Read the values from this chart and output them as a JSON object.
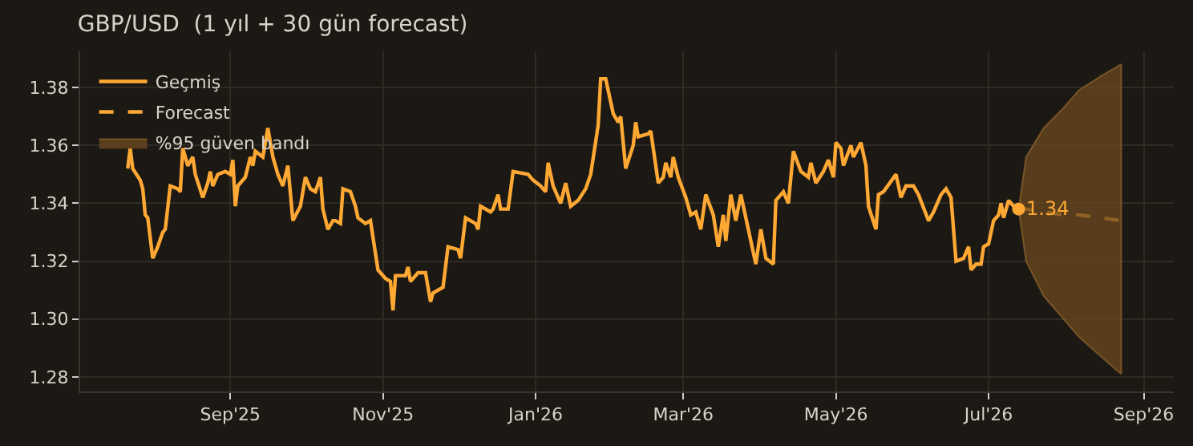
{
  "chart_data": {
    "type": "line",
    "title": "GBP/USD  (1 yıl + 30 gün forecast)",
    "xlim": [
      "2025-07-03",
      "2026-09-13"
    ],
    "xticks": [
      {
        "value": "2025-09-01",
        "label": "Sep'25"
      },
      {
        "value": "2025-11-01",
        "label": "Nov'25"
      },
      {
        "value": "2026-01-01",
        "label": "Jan'26"
      },
      {
        "value": "2026-03-01",
        "label": "Mar'26"
      },
      {
        "value": "2026-05-01",
        "label": "May'26"
      },
      {
        "value": "2026-07-01",
        "label": "Jul'26"
      },
      {
        "value": "2026-09-01",
        "label": "Sep'26"
      }
    ],
    "ylim": [
      1.275,
      1.3925
    ],
    "yticks": [
      {
        "value": 1.28,
        "label": "1.28"
      },
      {
        "value": 1.3,
        "label": "1.30"
      },
      {
        "value": 1.32,
        "label": "1.32"
      },
      {
        "value": 1.34,
        "label": "1.34"
      },
      {
        "value": 1.36,
        "label": "1.36"
      },
      {
        "value": 1.38,
        "label": "1.38"
      }
    ],
    "grid": true,
    "legend": "top left",
    "series": [
      {
        "name": "Geçmiş",
        "line_style": "solid",
        "color": "#ffa833",
        "x": [
          "2025-07-22",
          "2025-07-23",
          "2025-07-24",
          "2025-07-27",
          "2025-07-28",
          "2025-07-29",
          "2025-07-30",
          "2025-08-01",
          "2025-08-03",
          "2025-08-05",
          "2025-08-06",
          "2025-08-08",
          "2025-08-11",
          "2025-08-12",
          "2025-08-13",
          "2025-08-15",
          "2025-08-17",
          "2025-08-18",
          "2025-08-21",
          "2025-08-23",
          "2025-08-24",
          "2025-08-25",
          "2025-08-27",
          "2025-08-30",
          "2025-09-01",
          "2025-09-02",
          "2025-09-03",
          "2025-09-04",
          "2025-09-07",
          "2025-09-09",
          "2025-09-10",
          "2025-09-11",
          "2025-09-14",
          "2025-09-16",
          "2025-09-18",
          "2025-09-20",
          "2025-09-22",
          "2025-09-24",
          "2025-09-26",
          "2025-09-29",
          "2025-10-01",
          "2025-10-03",
          "2025-10-05",
          "2025-10-07",
          "2025-10-08",
          "2025-10-10",
          "2025-10-12",
          "2025-10-13",
          "2025-10-15",
          "2025-10-16",
          "2025-10-19",
          "2025-10-21",
          "2025-10-22",
          "2025-10-25",
          "2025-10-27",
          "2025-10-30",
          "2025-11-02",
          "2025-11-04",
          "2025-11-05",
          "2025-11-06",
          "2025-11-10",
          "2025-11-11",
          "2025-11-12",
          "2025-11-15",
          "2025-11-18",
          "2025-11-20",
          "2025-11-21",
          "2025-11-25",
          "2025-11-27",
          "2025-12-01",
          "2025-12-02",
          "2025-12-04",
          "2025-12-08",
          "2025-12-09",
          "2025-12-10",
          "2025-12-14",
          "2025-12-15",
          "2025-12-17",
          "2025-12-18",
          "2025-12-21",
          "2025-12-23",
          "2025-12-29",
          "2025-12-31",
          "2026-01-03",
          "2026-01-05",
          "2026-01-06",
          "2026-01-08",
          "2026-01-11",
          "2026-01-13",
          "2026-01-14",
          "2026-01-15",
          "2026-01-18",
          "2026-01-21",
          "2026-01-23",
          "2026-01-26",
          "2026-01-27",
          "2026-01-29",
          "2026-02-01",
          "2026-02-03",
          "2026-02-04",
          "2026-02-06",
          "2026-02-09",
          "2026-02-10",
          "2026-02-11",
          "2026-02-15",
          "2026-02-16",
          "2026-02-19",
          "2026-02-21",
          "2026-02-22",
          "2026-02-24",
          "2026-02-25",
          "2026-02-27",
          "2026-03-02",
          "2026-03-04",
          "2026-03-06",
          "2026-03-08",
          "2026-03-10",
          "2026-03-13",
          "2026-03-15",
          "2026-03-17",
          "2026-03-18",
          "2026-03-20",
          "2026-03-22",
          "2026-03-24",
          "2026-03-26",
          "2026-03-30",
          "2026-04-01",
          "2026-04-03",
          "2026-04-06",
          "2026-04-07",
          "2026-04-10",
          "2026-04-12",
          "2026-04-14",
          "2026-04-17",
          "2026-04-20",
          "2026-04-21",
          "2026-04-23",
          "2026-04-26",
          "2026-04-28",
          "2026-04-30",
          "2026-05-01",
          "2026-05-03",
          "2026-05-04",
          "2026-05-07",
          "2026-05-08",
          "2026-05-11",
          "2026-05-13",
          "2026-05-14",
          "2026-05-17",
          "2026-05-18",
          "2026-05-20",
          "2026-05-25",
          "2026-05-27",
          "2026-05-29",
          "2026-06-01",
          "2026-06-03",
          "2026-06-07",
          "2026-06-09",
          "2026-06-12",
          "2026-06-14",
          "2026-06-16",
          "2026-06-18",
          "2026-06-21",
          "2026-06-23",
          "2026-06-24",
          "2026-06-26",
          "2026-06-28",
          "2026-06-29",
          "2026-07-01",
          "2026-07-03",
          "2026-07-05",
          "2026-07-06",
          "2026-07-07",
          "2026-07-09",
          "2026-07-11",
          "2026-07-13"
        ],
        "values": [
          1.352,
          1.359,
          1.352,
          1.348,
          1.345,
          1.336,
          1.335,
          1.321,
          1.325,
          1.33,
          1.331,
          1.346,
          1.345,
          1.344,
          1.359,
          1.353,
          1.356,
          1.35,
          1.342,
          1.347,
          1.351,
          1.346,
          1.35,
          1.351,
          1.35,
          1.355,
          1.339,
          1.346,
          1.349,
          1.356,
          1.353,
          1.358,
          1.356,
          1.366,
          1.356,
          1.35,
          1.346,
          1.353,
          1.334,
          1.339,
          1.349,
          1.345,
          1.344,
          1.349,
          1.338,
          1.331,
          1.334,
          1.334,
          1.333,
          1.345,
          1.344,
          1.339,
          1.335,
          1.333,
          1.334,
          1.317,
          1.314,
          1.313,
          1.303,
          1.315,
          1.315,
          1.318,
          1.313,
          1.316,
          1.316,
          1.306,
          1.309,
          1.311,
          1.325,
          1.324,
          1.321,
          1.335,
          1.333,
          1.331,
          1.339,
          1.337,
          1.338,
          1.343,
          1.338,
          1.338,
          1.351,
          1.35,
          1.348,
          1.346,
          1.344,
          1.354,
          1.346,
          1.34,
          1.347,
          1.343,
          1.339,
          1.341,
          1.345,
          1.35,
          1.367,
          1.383,
          1.383,
          1.371,
          1.368,
          1.37,
          1.352,
          1.36,
          1.368,
          1.363,
          1.364,
          1.365,
          1.347,
          1.349,
          1.354,
          1.349,
          1.356,
          1.349,
          1.342,
          1.336,
          1.337,
          1.331,
          1.343,
          1.336,
          1.325,
          1.336,
          1.327,
          1.343,
          1.334,
          1.343,
          1.335,
          1.319,
          1.331,
          1.321,
          1.319,
          1.341,
          1.344,
          1.34,
          1.358,
          1.351,
          1.349,
          1.354,
          1.347,
          1.351,
          1.355,
          1.349,
          1.361,
          1.359,
          1.353,
          1.36,
          1.356,
          1.361,
          1.353,
          1.339,
          1.331,
          1.343,
          1.344,
          1.35,
          1.342,
          1.346,
          1.346,
          1.343,
          1.334,
          1.337,
          1.343,
          1.345,
          1.342,
          1.32,
          1.321,
          1.325,
          1.317,
          1.319,
          1.319,
          1.325,
          1.326,
          1.334,
          1.336,
          1.34,
          1.335,
          1.341,
          1.339,
          1.338
        ]
      },
      {
        "name": "Forecast",
        "line_style": "dashed",
        "color": "#ffa833",
        "x": [
          "2026-07-13",
          "2026-07-16",
          "2026-07-23",
          "2026-07-31",
          "2026-08-06",
          "2026-08-15",
          "2026-08-23"
        ],
        "values": [
          1.338,
          1.338,
          1.337,
          1.336,
          1.336,
          1.335,
          1.334
        ],
        "lower": [
          1.338,
          1.32,
          1.308,
          1.3,
          1.294,
          1.287,
          1.281
        ],
        "upper": [
          1.338,
          1.356,
          1.366,
          1.373,
          1.379,
          1.384,
          1.388
        ]
      },
      {
        "name": "%95 güven bandı",
        "type": "area",
        "color": "#6b4a1f"
      }
    ],
    "annotations": [
      {
        "text": "1.34",
        "x": "2026-07-13",
        "y": 1.338
      }
    ]
  }
}
